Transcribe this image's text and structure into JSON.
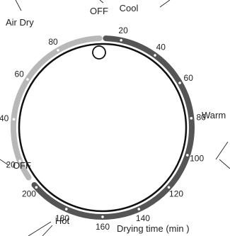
{
  "dial": {
    "labels": {
      "off_top": "OFF",
      "cool": "Cool",
      "air_dry": "Air Dry",
      "warm": "Warm",
      "hot": "Hot",
      "off_left": "OFF",
      "caption": "Drying time (min )"
    },
    "timed_scale": {
      "ticks": [
        "20",
        "40",
        "60",
        "80",
        "100",
        "120",
        "140",
        "160",
        "180",
        "200"
      ],
      "color": "#555555"
    },
    "air_dry_scale": {
      "ticks": [
        "20",
        "40",
        "60",
        "80"
      ],
      "color": "#b8b8b8"
    },
    "colors": {
      "dial_outline": "#111111",
      "knob": "#111111",
      "tick_dot": "#ffffff"
    }
  }
}
